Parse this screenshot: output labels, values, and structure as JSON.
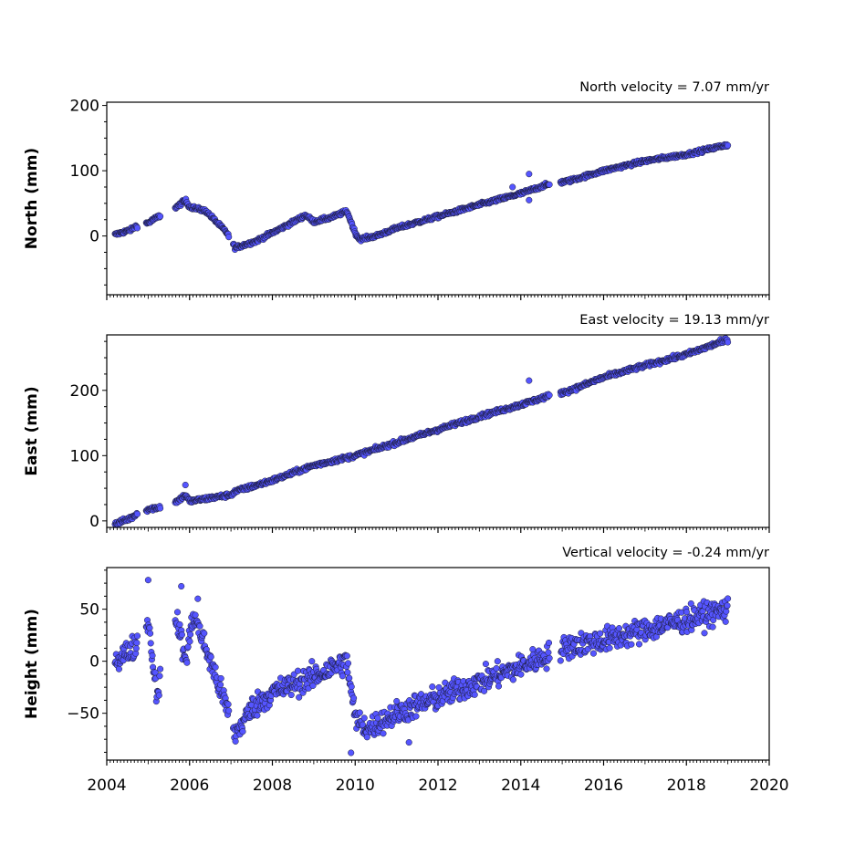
{
  "colors": {
    "point_fill": "#5555ff",
    "point_stroke": "#1a1a33",
    "axes": "#000000"
  },
  "chart_data": [
    {
      "type": "scatter",
      "title": "North velocity = 7.07 mm/yr",
      "ylabel": "North (mm)",
      "xlim": [
        2004,
        2020
      ],
      "ylim": [
        -90,
        205
      ],
      "yticks": [
        0,
        100,
        200
      ],
      "xticks": [
        2004,
        2006,
        2008,
        2010,
        2012,
        2014,
        2016,
        2018,
        2020
      ],
      "show_xtick_labels": false,
      "noise": 2.5,
      "anchors": [
        [
          2004.2,
          2
        ],
        [
          2004.6,
          10
        ],
        [
          2004.7,
          15
        ],
        [
          2005.0,
          20
        ],
        [
          2005.2,
          28
        ],
        [
          2005.7,
          45
        ],
        [
          2005.9,
          55
        ],
        [
          2006.0,
          45
        ],
        [
          2006.4,
          38
        ],
        [
          2006.9,
          5
        ],
        [
          2007.1,
          -18
        ],
        [
          2007.6,
          -8
        ],
        [
          2008.0,
          5
        ],
        [
          2008.4,
          18
        ],
        [
          2008.8,
          32
        ],
        [
          2009.0,
          22
        ],
        [
          2009.4,
          28
        ],
        [
          2009.8,
          38
        ],
        [
          2010.0,
          5
        ],
        [
          2010.1,
          -5
        ],
        [
          2010.5,
          0
        ],
        [
          2011.0,
          12
        ],
        [
          2012.0,
          30
        ],
        [
          2013.0,
          48
        ],
        [
          2014.0,
          65
        ],
        [
          2014.6,
          78
        ],
        [
          2015.2,
          85
        ],
        [
          2016.0,
          100
        ],
        [
          2017.0,
          115
        ],
        [
          2018.0,
          125
        ],
        [
          2019.0,
          140
        ]
      ],
      "gaps": [
        [
          2004.75,
          2004.95
        ],
        [
          2005.3,
          2005.65
        ],
        [
          2006.95,
          2007.05
        ],
        [
          2014.7,
          2014.95
        ]
      ],
      "outliers": [
        [
          2014.2,
          95
        ],
        [
          2014.2,
          55
        ],
        [
          2013.8,
          75
        ]
      ]
    },
    {
      "type": "scatter",
      "title": "East velocity = 19.13 mm/yr",
      "ylabel": "East (mm)",
      "xlim": [
        2004,
        2020
      ],
      "ylim": [
        -10,
        285
      ],
      "yticks": [
        0,
        100,
        200
      ],
      "xticks": [
        2004,
        2006,
        2008,
        2010,
        2012,
        2014,
        2016,
        2018,
        2020
      ],
      "show_xtick_labels": false,
      "noise": 3,
      "anchors": [
        [
          2004.2,
          -5
        ],
        [
          2004.6,
          5
        ],
        [
          2004.7,
          10
        ],
        [
          2005.0,
          18
        ],
        [
          2005.2,
          20
        ],
        [
          2005.7,
          30
        ],
        [
          2005.9,
          40
        ],
        [
          2006.0,
          30
        ],
        [
          2007.0,
          40
        ],
        [
          2007.1,
          45
        ],
        [
          2008.0,
          62
        ],
        [
          2009.0,
          85
        ],
        [
          2010.0,
          100
        ],
        [
          2011.0,
          120
        ],
        [
          2012.0,
          140
        ],
        [
          2013.0,
          160
        ],
        [
          2014.0,
          178
        ],
        [
          2014.6,
          190
        ],
        [
          2015.2,
          200
        ],
        [
          2016.0,
          220
        ],
        [
          2017.0,
          238
        ],
        [
          2018.0,
          255
        ],
        [
          2019.0,
          278
        ]
      ],
      "gaps": [
        [
          2004.75,
          2004.95
        ],
        [
          2005.3,
          2005.65
        ],
        [
          2014.7,
          2014.95
        ]
      ],
      "outliers": [
        [
          2014.2,
          215
        ],
        [
          2005.9,
          55
        ]
      ]
    },
    {
      "type": "scatter",
      "title": "Vertical velocity = -0.24 mm/yr",
      "ylabel": "Height (mm)",
      "xlim": [
        2004,
        2020
      ],
      "ylim": [
        -95,
        90
      ],
      "yticks": [
        -50,
        0,
        50
      ],
      "xticks": [
        2004,
        2006,
        2008,
        2010,
        2012,
        2014,
        2016,
        2018,
        2020
      ],
      "xtick_labels": [
        "2004",
        "2006",
        "2008",
        "2010",
        "2012",
        "2014",
        "2016",
        "2018",
        "2020"
      ],
      "show_xtick_labels": true,
      "noise": 11,
      "anchors": [
        [
          2004.2,
          0
        ],
        [
          2004.7,
          15
        ],
        [
          2005.0,
          40
        ],
        [
          2005.2,
          -30
        ],
        [
          2005.7,
          40
        ],
        [
          2005.9,
          0
        ],
        [
          2006.1,
          45
        ],
        [
          2006.5,
          0
        ],
        [
          2006.9,
          -45
        ],
        [
          2007.1,
          -70
        ],
        [
          2007.5,
          -45
        ],
        [
          2008.0,
          -30
        ],
        [
          2009.0,
          -15
        ],
        [
          2009.8,
          0
        ],
        [
          2010.0,
          -55
        ],
        [
          2010.3,
          -65
        ],
        [
          2011.0,
          -50
        ],
        [
          2012.0,
          -35
        ],
        [
          2013.0,
          -20
        ],
        [
          2014.0,
          -5
        ],
        [
          2014.6,
          5
        ],
        [
          2015.2,
          15
        ],
        [
          2016.0,
          20
        ],
        [
          2017.0,
          30
        ],
        [
          2018.0,
          40
        ],
        [
          2019.0,
          50
        ]
      ],
      "gaps": [
        [
          2004.75,
          2004.95
        ],
        [
          2005.3,
          2005.65
        ],
        [
          2006.95,
          2007.05
        ],
        [
          2014.7,
          2014.95
        ]
      ],
      "outliers": [
        [
          2005.0,
          78
        ],
        [
          2005.8,
          72
        ],
        [
          2006.2,
          60
        ],
        [
          2011.3,
          -78
        ],
        [
          2009.9,
          -88
        ]
      ]
    }
  ]
}
